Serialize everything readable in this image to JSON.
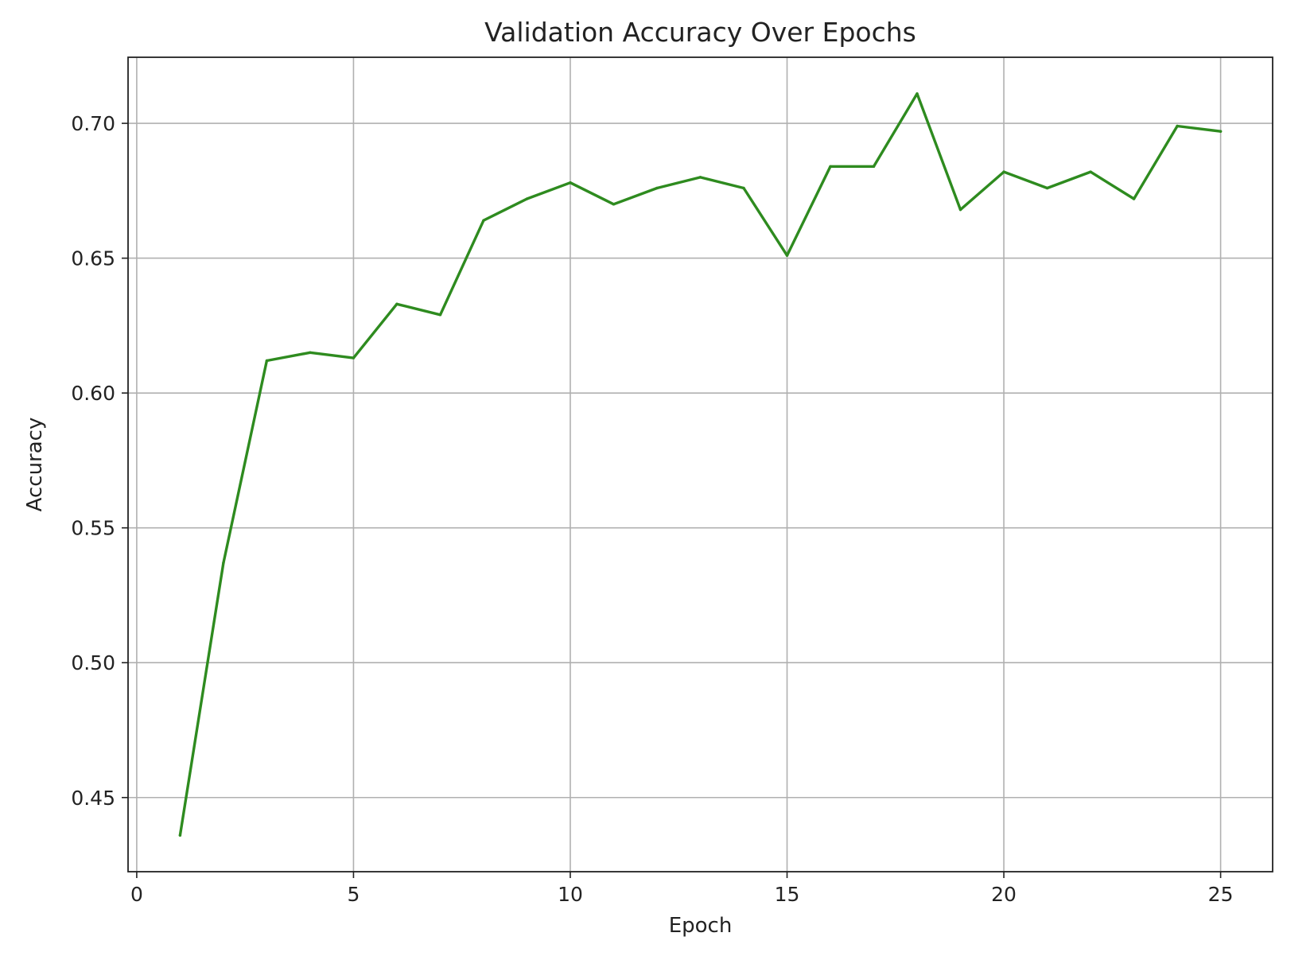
{
  "chart_data": {
    "type": "line",
    "title": "Validation Accuracy Over Epochs",
    "xlabel": "Epoch",
    "ylabel": "Accuracy",
    "xlim": [
      -0.2,
      26.2
    ],
    "ylim": [
      0.4225,
      0.7245
    ],
    "xticks": [
      0,
      5,
      10,
      15,
      20,
      25
    ],
    "xtick_labels": [
      "0",
      "5",
      "10",
      "15",
      "20",
      "25"
    ],
    "yticks": [
      0.45,
      0.5,
      0.55,
      0.6,
      0.65,
      0.7
    ],
    "ytick_labels": [
      "0.45",
      "0.50",
      "0.55",
      "0.60",
      "0.65",
      "0.70"
    ],
    "grid": true,
    "series": [
      {
        "color": "#2e8b1f",
        "x": [
          1,
          2,
          3,
          4,
          5,
          6,
          7,
          8,
          9,
          10,
          11,
          12,
          13,
          14,
          15,
          16,
          17,
          18,
          19,
          20,
          21,
          22,
          23,
          24,
          25
        ],
        "y": [
          0.436,
          0.537,
          0.612,
          0.615,
          0.613,
          0.633,
          0.629,
          0.664,
          0.672,
          0.678,
          0.67,
          0.676,
          0.68,
          0.676,
          0.651,
          0.684,
          0.684,
          0.711,
          0.668,
          0.682,
          0.676,
          0.682,
          0.672,
          0.699,
          0.697
        ]
      }
    ]
  }
}
